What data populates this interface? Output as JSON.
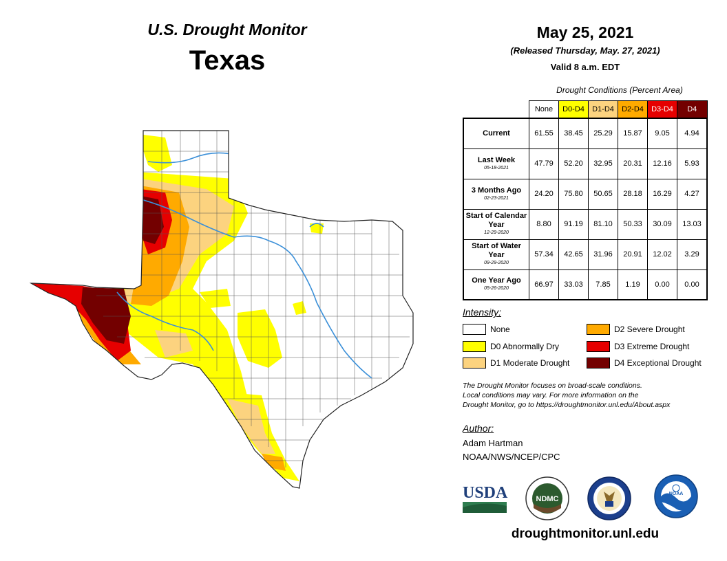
{
  "header": {
    "monitor_title": "U.S. Drought Monitor",
    "state": "Texas",
    "date": "May 25, 2021",
    "released": "(Released Thursday, May. 27, 2021)",
    "valid": "Valid 8 a.m. EDT"
  },
  "table": {
    "caption": "Drought Conditions (Percent Area)",
    "columns": [
      {
        "label": "None",
        "color": "#ffffff",
        "text_color": "#000000"
      },
      {
        "label": "D0-D4",
        "color": "#ffff00",
        "text_color": "#000000"
      },
      {
        "label": "D1-D4",
        "color": "#fcd37f",
        "text_color": "#000000"
      },
      {
        "label": "D2-D4",
        "color": "#ffaa00",
        "text_color": "#000000"
      },
      {
        "label": "D3-D4",
        "color": "#e60000",
        "text_color": "#ffffff"
      },
      {
        "label": "D4",
        "color": "#730000",
        "text_color": "#ffffff"
      }
    ],
    "rows": [
      {
        "label": "Current",
        "sub": "",
        "values": [
          "61.55",
          "38.45",
          "25.29",
          "15.87",
          "9.05",
          "4.94"
        ]
      },
      {
        "label": "Last Week",
        "sub": "05-18-2021",
        "values": [
          "47.79",
          "52.20",
          "32.95",
          "20.31",
          "12.16",
          "5.93"
        ]
      },
      {
        "label": "3 Months Ago",
        "sub": "02-23-2021",
        "values": [
          "24.20",
          "75.80",
          "50.65",
          "28.18",
          "16.29",
          "4.27"
        ]
      },
      {
        "label": "Start of Calendar Year",
        "sub": "12-29-2020",
        "values": [
          "8.80",
          "91.19",
          "81.10",
          "50.33",
          "30.09",
          "13.03"
        ]
      },
      {
        "label": "Start of Water Year",
        "sub": "09-29-2020",
        "values": [
          "57.34",
          "42.65",
          "31.96",
          "20.91",
          "12.02",
          "3.29"
        ]
      },
      {
        "label": "One Year Ago",
        "sub": "05-26-2020",
        "values": [
          "66.97",
          "33.03",
          "7.85",
          "1.19",
          "0.00",
          "0.00"
        ]
      }
    ]
  },
  "legend": {
    "title": "Intensity:",
    "items": [
      {
        "label": "None",
        "color": "#ffffff"
      },
      {
        "label": "D0 Abnormally Dry",
        "color": "#ffff00"
      },
      {
        "label": "D1 Moderate Drought",
        "color": "#fcd37f"
      },
      {
        "label": "D2 Severe Drought",
        "color": "#ffaa00"
      },
      {
        "label": "D3 Extreme Drought",
        "color": "#e60000"
      },
      {
        "label": "D4 Exceptional Drought",
        "color": "#730000"
      }
    ]
  },
  "note": {
    "line1": "The Drought Monitor focuses on broad-scale conditions.",
    "line2": "Local conditions may vary. For more information on the",
    "line3": "Drought Monitor, go to https://droughtmonitor.unl.edu/About.aspx"
  },
  "author": {
    "label": "Author:",
    "name": "Adam Hartman",
    "org": "NOAA/NWS/NCEP/CPC"
  },
  "logos": {
    "usda": "USDA",
    "ndmc": "NDMC",
    "noaa": "NOAA"
  },
  "website": "droughtmonitor.unl.edu"
}
